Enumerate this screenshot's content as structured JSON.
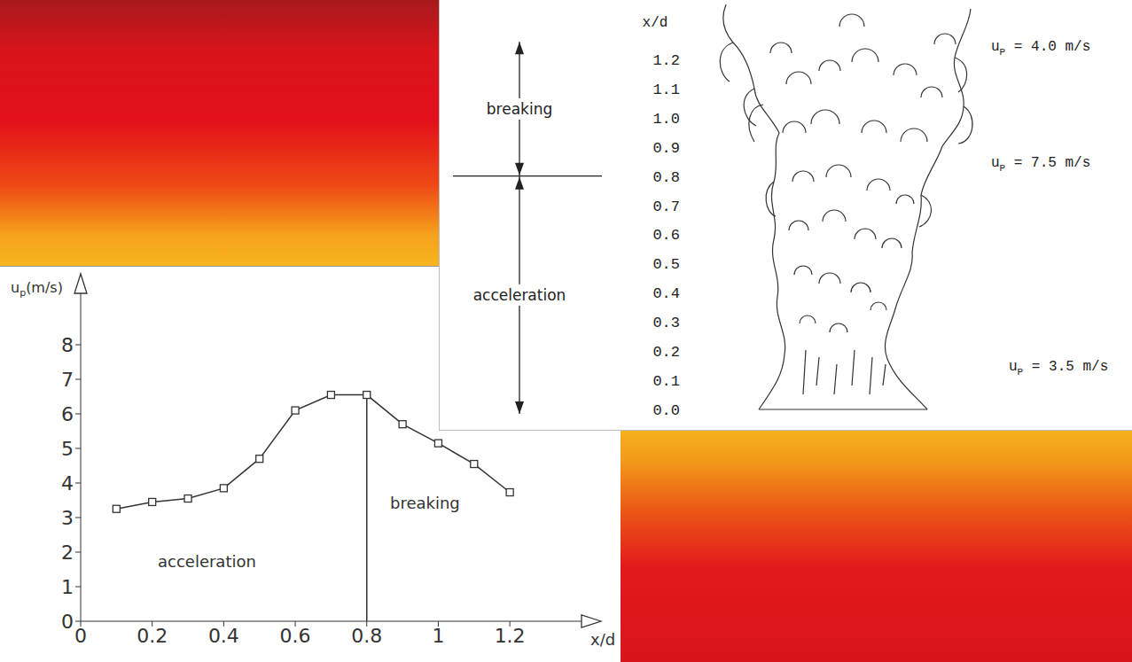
{
  "chart_data": {
    "type": "line",
    "x": [
      0.1,
      0.2,
      0.3,
      0.4,
      0.5,
      0.6,
      0.7,
      0.8,
      0.9,
      1.0,
      1.1,
      1.2
    ],
    "values": [
      3.25,
      3.45,
      3.55,
      3.85,
      4.7,
      6.1,
      6.55,
      6.55,
      5.7,
      5.15,
      4.55,
      3.73
    ],
    "color": "#333333",
    "marker": "square",
    "line_style": "solid",
    "xlim": [
      0,
      1.45
    ],
    "xticks": [
      0,
      0.2,
      0.4,
      0.6,
      0.8,
      1,
      1.2
    ],
    "ylim": [
      0,
      10
    ],
    "yticks": [
      0,
      1,
      2,
      3,
      4,
      5,
      6,
      7,
      8
    ],
    "grid": false,
    "xlabel": "x/d",
    "ylabel": {
      "symbol": "u",
      "subscript": "p",
      "unit": "(m/s)"
    },
    "vertical_line": 0.8,
    "annotations": [
      "acceleration",
      "breaking"
    ]
  },
  "diagram": {
    "axis_title": "x/d",
    "scale": [
      {
        "value": 0,
        "label": "0.0"
      },
      {
        "value": 0.1,
        "label": "0.1"
      },
      {
        "value": 0.2,
        "label": "0.2"
      },
      {
        "value": 0.3,
        "label": "0.3"
      },
      {
        "value": 0.4,
        "label": "0.4"
      },
      {
        "value": 0.5,
        "label": "0.5"
      },
      {
        "value": 0.6,
        "label": "0.6"
      },
      {
        "value": 0.7,
        "label": "0.7"
      },
      {
        "value": 0.8,
        "label": "0.8"
      },
      {
        "value": 0.9,
        "label": "0.9"
      },
      {
        "value": 1.0,
        "label": "1.0"
      },
      {
        "value": 1.1,
        "label": "1.1"
      },
      {
        "value": 1.2,
        "label": "1.2"
      }
    ],
    "boundary": 0.8,
    "zones": [
      "breaking",
      "acceleration"
    ],
    "velocities": [
      {
        "symbol": "u",
        "subscript": "P",
        "text": " = 4.0 m/s"
      },
      {
        "symbol": "u",
        "subscript": "P",
        "text": " = 7.5 m/s"
      },
      {
        "symbol": "u",
        "subscript": "P",
        "text": " = 3.5 m/s"
      }
    ]
  }
}
